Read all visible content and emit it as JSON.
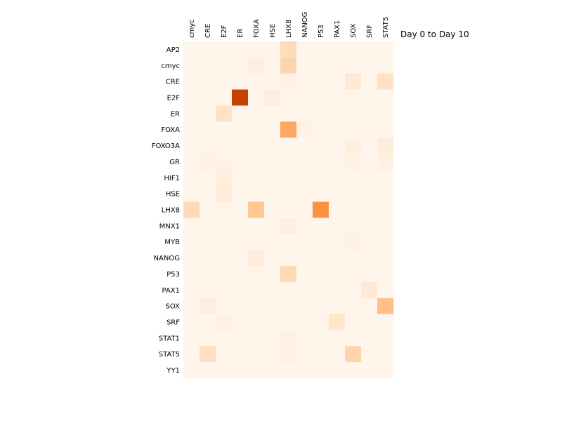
{
  "chart_data": {
    "type": "heatmap",
    "title": "Day 0 to Day 10",
    "columns": [
      "cmyc",
      "CRE",
      "E2F",
      "ER",
      "FOXA",
      "HSE",
      "LHX8",
      "NANOG",
      "P53",
      "PAX1",
      "SOX",
      "SRF",
      "STAT5"
    ],
    "rows": [
      "AP2",
      "cmyc",
      "CRE",
      "E2F",
      "ER",
      "FOXA",
      "FOXO3A",
      "GR",
      "HIF1",
      "HSE",
      "LHX8",
      "MNX1",
      "MYB",
      "NANOG",
      "P53",
      "PAX1",
      "SOX",
      "SRF",
      "STAT1",
      "STAT5",
      "YY1"
    ],
    "colormap": "Oranges",
    "value_range": [
      0,
      1
    ],
    "colorbar": false,
    "values": [
      [
        0,
        0,
        0,
        0,
        0,
        0,
        0.18,
        0,
        0,
        0,
        0,
        0,
        0
      ],
      [
        0,
        0,
        0,
        0,
        0.05,
        0,
        0.22,
        0,
        0,
        0,
        0,
        0,
        0
      ],
      [
        0,
        0,
        0,
        0,
        0,
        0,
        0.03,
        0,
        0,
        0,
        0.1,
        0,
        0.15
      ],
      [
        0,
        0,
        0,
        0.8,
        0,
        0.06,
        0,
        0,
        0,
        0,
        0,
        0,
        0
      ],
      [
        0,
        0,
        0.15,
        0,
        0,
        0,
        0,
        0,
        0,
        0,
        0,
        0,
        0
      ],
      [
        0,
        0,
        0,
        0,
        0,
        0,
        0.4,
        0.03,
        0,
        0,
        0,
        0,
        0
      ],
      [
        0,
        0,
        0,
        0,
        0,
        0,
        0,
        0,
        0,
        0,
        0.05,
        0,
        0.07
      ],
      [
        0,
        0.03,
        0.02,
        0,
        0,
        0,
        0,
        0,
        0,
        0,
        0.03,
        0,
        0.04
      ],
      [
        0,
        0,
        0.05,
        0,
        0,
        0,
        0,
        0,
        0,
        0,
        0,
        0,
        0
      ],
      [
        0,
        0,
        0.08,
        0,
        0,
        0,
        0,
        0,
        0,
        0,
        0,
        0,
        0
      ],
      [
        0.2,
        0,
        0,
        0,
        0.28,
        0,
        0,
        0,
        0.48,
        0,
        0,
        0,
        0
      ],
      [
        0,
        0,
        0,
        0,
        0,
        0,
        0.05,
        0,
        0,
        0,
        0,
        0,
        0
      ],
      [
        0,
        0,
        0,
        0,
        0,
        0,
        0,
        0,
        0,
        0,
        0.03,
        0,
        0
      ],
      [
        0,
        0,
        0,
        0,
        0.08,
        0,
        0,
        0,
        0,
        0,
        0,
        0,
        0
      ],
      [
        0,
        0,
        0,
        0,
        0,
        0,
        0.2,
        0,
        0,
        0,
        0,
        0,
        0
      ],
      [
        0,
        0,
        0,
        0,
        0,
        0,
        0,
        0,
        0,
        0,
        0,
        0.1,
        0
      ],
      [
        0,
        0.06,
        0,
        0,
        0,
        0,
        0,
        0,
        0,
        0,
        0,
        0,
        0.3
      ],
      [
        0,
        0,
        0.03,
        0,
        0,
        0,
        0,
        0,
        0,
        0.13,
        0,
        0,
        0
      ],
      [
        0,
        0,
        0,
        0,
        0,
        0,
        0.04,
        0,
        0,
        0,
        0,
        0,
        0
      ],
      [
        0,
        0.16,
        0,
        0,
        0,
        0,
        0.03,
        0,
        0,
        0,
        0.22,
        0,
        0
      ],
      [
        0,
        0,
        0,
        0,
        0,
        0,
        0,
        0,
        0,
        0,
        0,
        0,
        0
      ]
    ]
  }
}
